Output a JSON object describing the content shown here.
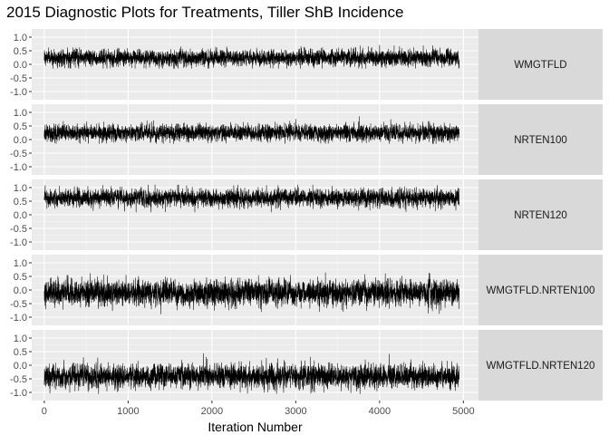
{
  "chart_data": {
    "type": "line",
    "title": "2015 Diagnostic Plots for Treatments, Tiller ShB Incidence",
    "xlabel": "Iteration Number",
    "ylabel": "",
    "xlim": [
      -150,
      5180
    ],
    "ylim": [
      -1.3,
      1.3
    ],
    "x_ticks": [
      0,
      1000,
      2000,
      3000,
      4000,
      5000
    ],
    "y_ticks": [
      1.0,
      0.5,
      0.0,
      -0.5,
      -1.0
    ],
    "y_tick_labels": [
      "1.0",
      "0.5",
      "0.0",
      "-0.5",
      "-1.0"
    ],
    "iterations": [
      0,
      4950
    ],
    "grid": true,
    "line_color": "#000000",
    "panel_background": "#ebebeb",
    "strip_background": "#d9d9d9",
    "facets": [
      {
        "label": "WMGTFLD",
        "mean": 0.24,
        "spread": 0.14,
        "min": -0.15,
        "max": 0.85
      },
      {
        "label": "NRTEN100",
        "mean": 0.25,
        "spread": 0.14,
        "min": -0.15,
        "max": 0.85
      },
      {
        "label": "NRTEN120",
        "mean": 0.62,
        "spread": 0.15,
        "min": 0.1,
        "max": 1.1
      },
      {
        "label": "WMGTFLD.NRTEN100",
        "mean": -0.1,
        "spread": 0.22,
        "min": -0.9,
        "max": 0.85
      },
      {
        "label": "WMGTFLD.NRTEN120",
        "mean": -0.4,
        "spread": 0.2,
        "min": -1.05,
        "max": 0.6
      }
    ]
  }
}
